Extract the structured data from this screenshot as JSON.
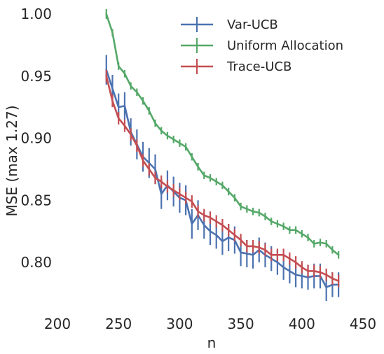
{
  "chart_data": {
    "type": "line",
    "title": "",
    "xlabel": "n",
    "ylabel": "MSE (max 1.27)",
    "xlim": [
      200,
      450
    ],
    "ylim": [
      0.77,
      1.0
    ],
    "xticks": [
      "200",
      "250",
      "300",
      "350",
      "400",
      "450"
    ],
    "yticks": [
      "0.80",
      "0.85",
      "0.90",
      "0.95",
      "1.00"
    ],
    "grid": false,
    "legend_position": "top-right",
    "x": [
      240,
      245,
      250,
      255,
      260,
      265,
      270,
      275,
      280,
      285,
      290,
      295,
      300,
      305,
      310,
      315,
      320,
      325,
      330,
      335,
      340,
      345,
      350,
      355,
      360,
      365,
      370,
      375,
      380,
      385,
      390,
      395,
      400,
      405,
      410,
      415,
      420,
      425,
      430
    ],
    "series": [
      {
        "name": "Var-UCB",
        "color": "#4c72b0",
        "values": [
          0.955,
          0.94,
          0.925,
          0.926,
          0.905,
          0.895,
          0.885,
          0.88,
          0.875,
          0.855,
          0.862,
          0.857,
          0.852,
          0.85,
          0.831,
          0.838,
          0.83,
          0.825,
          0.822,
          0.817,
          0.82,
          0.818,
          0.808,
          0.807,
          0.806,
          0.81,
          0.806,
          0.803,
          0.8,
          0.796,
          0.793,
          0.79,
          0.789,
          0.788,
          0.789,
          0.789,
          0.78,
          0.782,
          0.782
        ],
        "errors": [
          0.012,
          0.011,
          0.011,
          0.011,
          0.011,
          0.012,
          0.012,
          0.012,
          0.012,
          0.012,
          0.012,
          0.012,
          0.012,
          0.012,
          0.012,
          0.012,
          0.011,
          0.011,
          0.011,
          0.011,
          0.011,
          0.011,
          0.011,
          0.011,
          0.011,
          0.01,
          0.01,
          0.01,
          0.01,
          0.01,
          0.01,
          0.01,
          0.01,
          0.01,
          0.01,
          0.01,
          0.011,
          0.01,
          0.01
        ]
      },
      {
        "name": "Uniform Allocation",
        "color": "#55a868",
        "values": [
          1.0,
          0.985,
          0.958,
          0.952,
          0.942,
          0.937,
          0.93,
          0.922,
          0.912,
          0.906,
          0.902,
          0.899,
          0.896,
          0.893,
          0.885,
          0.877,
          0.87,
          0.868,
          0.865,
          0.862,
          0.857,
          0.852,
          0.845,
          0.843,
          0.841,
          0.84,
          0.837,
          0.833,
          0.831,
          0.829,
          0.826,
          0.826,
          0.823,
          0.82,
          0.815,
          0.816,
          0.815,
          0.81,
          0.806
        ],
        "errors": [
          0.004,
          0.003,
          0.003,
          0.003,
          0.003,
          0.003,
          0.003,
          0.003,
          0.003,
          0.003,
          0.003,
          0.003,
          0.003,
          0.003,
          0.003,
          0.003,
          0.003,
          0.003,
          0.003,
          0.003,
          0.003,
          0.003,
          0.003,
          0.003,
          0.003,
          0.003,
          0.003,
          0.003,
          0.003,
          0.003,
          0.003,
          0.003,
          0.003,
          0.003,
          0.003,
          0.003,
          0.003,
          0.003,
          0.003
        ]
      },
      {
        "name": "Trace-UCB",
        "color": "#c44e52",
        "values": [
          0.95,
          0.93,
          0.916,
          0.91,
          0.903,
          0.894,
          0.882,
          0.875,
          0.868,
          0.865,
          0.861,
          0.858,
          0.855,
          0.852,
          0.849,
          0.841,
          0.838,
          0.836,
          0.833,
          0.83,
          0.826,
          0.822,
          0.818,
          0.813,
          0.813,
          0.812,
          0.81,
          0.806,
          0.806,
          0.806,
          0.803,
          0.8,
          0.796,
          0.793,
          0.793,
          0.792,
          0.79,
          0.787,
          0.785
        ],
        "errors": [
          0.005,
          0.005,
          0.005,
          0.005,
          0.005,
          0.005,
          0.005,
          0.005,
          0.005,
          0.005,
          0.005,
          0.005,
          0.005,
          0.005,
          0.005,
          0.005,
          0.005,
          0.005,
          0.005,
          0.005,
          0.005,
          0.005,
          0.005,
          0.005,
          0.005,
          0.005,
          0.005,
          0.005,
          0.005,
          0.005,
          0.005,
          0.005,
          0.005,
          0.005,
          0.005,
          0.005,
          0.005,
          0.005,
          0.005
        ]
      }
    ]
  }
}
